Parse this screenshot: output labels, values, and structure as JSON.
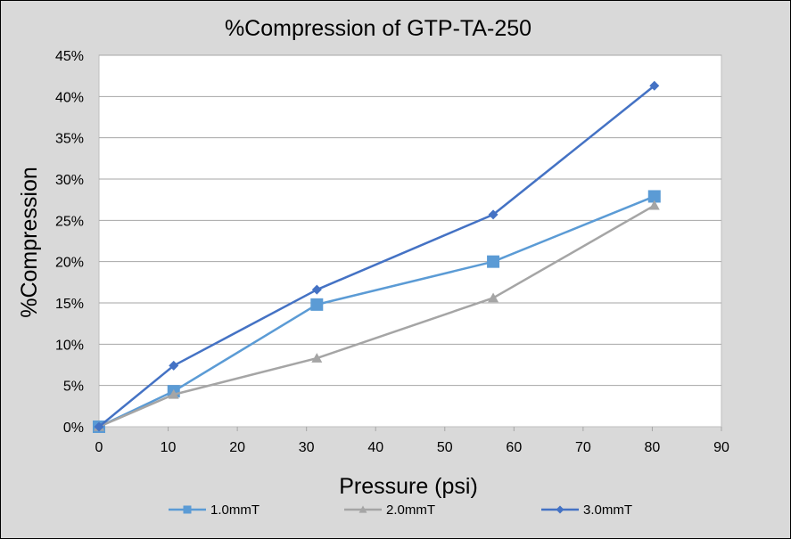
{
  "chart_data": {
    "type": "line",
    "title": "%Compression of GTP-TA-250",
    "xlabel": "Pressure (psi)",
    "ylabel": "%Compression",
    "xlim": [
      0,
      90
    ],
    "ylim": [
      0,
      45
    ],
    "xticks": [
      0,
      10,
      20,
      30,
      40,
      50,
      60,
      70,
      80,
      90
    ],
    "yticks": [
      0,
      5,
      10,
      15,
      20,
      25,
      30,
      35,
      40,
      45
    ],
    "ytick_labels": [
      "0%",
      "5%",
      "10%",
      "15%",
      "20%",
      "25%",
      "30%",
      "35%",
      "40%",
      "45%"
    ],
    "grid": "horizontal",
    "legend_position": "bottom",
    "series": [
      {
        "name": "1.0mmT",
        "color": "#5b9bd5",
        "marker": "square",
        "x": [
          0,
          10.8,
          31.5,
          57,
          80.3
        ],
        "y": [
          0,
          4.3,
          14.8,
          20.0,
          27.9
        ]
      },
      {
        "name": "2.0mmT",
        "color": "#a5a5a5",
        "marker": "triangle",
        "x": [
          0,
          10.8,
          31.5,
          57,
          80.3
        ],
        "y": [
          0,
          3.9,
          8.3,
          15.6,
          26.8
        ]
      },
      {
        "name": "3.0mmT",
        "color": "#4472c4",
        "marker": "diamond",
        "x": [
          0,
          10.8,
          31.5,
          57,
          80.3
        ],
        "y": [
          0,
          7.4,
          16.6,
          25.7,
          41.3
        ]
      }
    ]
  }
}
